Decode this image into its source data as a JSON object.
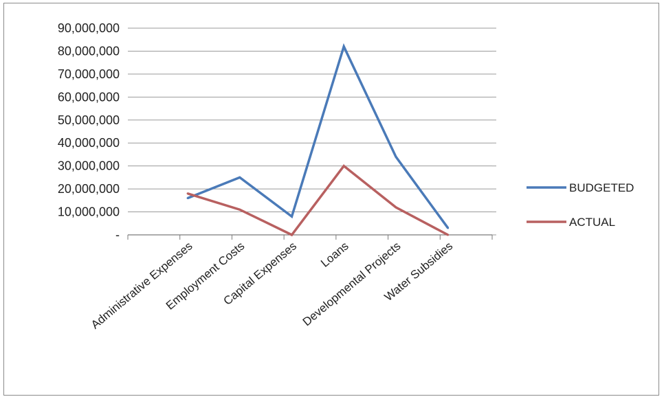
{
  "chart_data": {
    "type": "line",
    "categories": [
      "Administrative Expenses",
      "Employment Costs",
      "Capital Expenses",
      "Loans",
      "Developmental Projects",
      "Water Subsidies"
    ],
    "series": [
      {
        "name": "BUDGETED",
        "color": "#4a7ab8",
        "values": [
          16000000,
          25000000,
          8000000,
          82000000,
          34000000,
          3000000
        ]
      },
      {
        "name": "ACTUAL",
        "color": "#b86060",
        "values": [
          18000000,
          11000000,
          0,
          30000000,
          12000000,
          0
        ]
      }
    ],
    "y_ticks": [
      {
        "value": 0,
        "label": "-"
      },
      {
        "value": 10000000,
        "label": "10,000,000"
      },
      {
        "value": 20000000,
        "label": "20,000,000"
      },
      {
        "value": 30000000,
        "label": "30,000,000"
      },
      {
        "value": 40000000,
        "label": "40,000,000"
      },
      {
        "value": 50000000,
        "label": "50,000,000"
      },
      {
        "value": 60000000,
        "label": "60,000,000"
      },
      {
        "value": 70000000,
        "label": "70,000,000"
      },
      {
        "value": 80000000,
        "label": "80,000,000"
      },
      {
        "value": 90000000,
        "label": "90,000,000"
      }
    ],
    "ylim": [
      0,
      90000000
    ],
    "grid": true,
    "legend_position": "right",
    "title": "",
    "xlabel": "",
    "ylabel": ""
  }
}
